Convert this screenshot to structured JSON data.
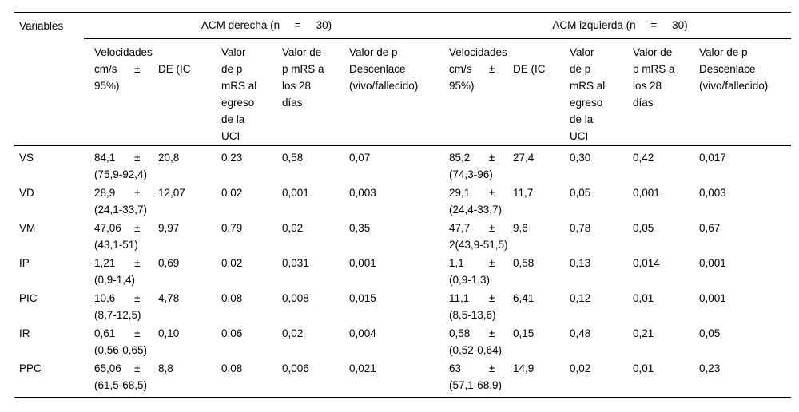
{
  "pm_sign": "±",
  "table": {
    "variables_label": "Variables",
    "groups": [
      {
        "label": "ACM derecha (n     =     30)"
      },
      {
        "label": "ACM izquierda (n     =     30)"
      }
    ],
    "subheaders": {
      "velocidades": {
        "l1": "Velocidades",
        "mean": "cm/s",
        "sd": "DE (IC",
        "l3": "95%)"
      },
      "p_egreso": "Valor\nde p\nmRS al\negreso\nde la\nUCI",
      "p_28": "Valor de\np mRS a\nlos 28\ndías",
      "p_desenlace": "Valor de p\nDescenlace\n(vivo/fallecido)"
    },
    "rows": [
      {
        "variable": "VS",
        "derecha": {
          "mean": "84,1",
          "sd": "20,8",
          "ci": "(75,9-92,4)",
          "p_egreso": "0,23",
          "p_28": "0,58",
          "p_desenlace": "0,07"
        },
        "izquierda": {
          "mean": "85,2",
          "sd": "27,4",
          "ci": "(74,3-96)",
          "p_egreso": "0,30",
          "p_28": "0,42",
          "p_desenlace": "0,017"
        }
      },
      {
        "variable": "VD",
        "derecha": {
          "mean": "28,9",
          "sd": "12,07",
          "ci": "(24,1-33,7)",
          "p_egreso": "0,02",
          "p_28": "0,001",
          "p_desenlace": "0,003"
        },
        "izquierda": {
          "mean": "29,1",
          "sd": "11,7",
          "ci": "(24,4-33,7)",
          "p_egreso": "0,05",
          "p_28": "0,001",
          "p_desenlace": "0,003"
        }
      },
      {
        "variable": "VM",
        "derecha": {
          "mean": "47,06",
          "sd": "9,97",
          "ci": "(43,1-51)",
          "p_egreso": "0,79",
          "p_28": "0,02",
          "p_desenlace": "0,35"
        },
        "izquierda": {
          "mean": "47,7",
          "sd": "9,6",
          "ci": "2(43,9-51,5)",
          "p_egreso": "0,78",
          "p_28": "0,05",
          "p_desenlace": "0,67"
        }
      },
      {
        "variable": "IP",
        "derecha": {
          "mean": "1,21",
          "sd": "0,69",
          "ci": "(0,9-1,4)",
          "p_egreso": "0,02",
          "p_28": "0,031",
          "p_desenlace": "0,001"
        },
        "izquierda": {
          "mean": "1,1",
          "sd": "0,58",
          "ci": "(0,9-1,3)",
          "p_egreso": "0,13",
          "p_28": "0,014",
          "p_desenlace": "0,001"
        }
      },
      {
        "variable": "PIC",
        "derecha": {
          "mean": "10,6",
          "sd": "4,78",
          "ci": "(8,7-12,5)",
          "p_egreso": "0,08",
          "p_28": "0,008",
          "p_desenlace": "0,015"
        },
        "izquierda": {
          "mean": "11,1",
          "sd": "6,41",
          "ci": "(8,5-13,6)",
          "p_egreso": "0,12",
          "p_28": "0,01",
          "p_desenlace": "0,001"
        }
      },
      {
        "variable": "IR",
        "derecha": {
          "mean": "0,61",
          "sd": "0,10",
          "ci": "(0,56-0,65)",
          "p_egreso": "0,06",
          "p_28": "0,02",
          "p_desenlace": "0,004"
        },
        "izquierda": {
          "mean": "0,58",
          "sd": "0,15",
          "ci": "(0,52-0,64)",
          "p_egreso": "0,48",
          "p_28": "0,21",
          "p_desenlace": "0,05"
        }
      },
      {
        "variable": "PPC",
        "derecha": {
          "mean": "65,06",
          "sd": "8,8",
          "ci": "(61,5-68,5)",
          "p_egreso": "0,08",
          "p_28": "0,006",
          "p_desenlace": "0,021"
        },
        "izquierda": {
          "mean": "63",
          "sd": "14,9",
          "ci": "(57,1-68,9)",
          "p_egreso": "0,02",
          "p_28": "0,01",
          "p_desenlace": "0,23"
        }
      }
    ]
  }
}
